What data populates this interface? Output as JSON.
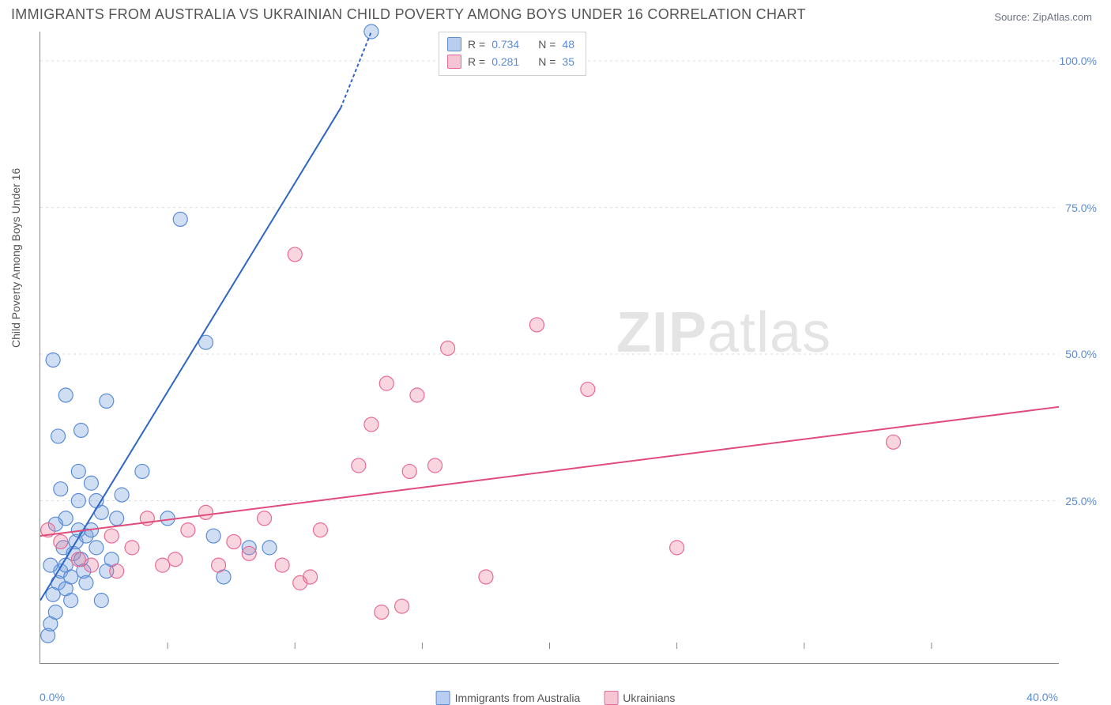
{
  "title": "IMMIGRANTS FROM AUSTRALIA VS UKRAINIAN CHILD POVERTY AMONG BOYS UNDER 16 CORRELATION CHART",
  "source_label": "Source: ",
  "source_link": "ZipAtlas.com",
  "watermark_bold": "ZIP",
  "watermark_rest": "atlas",
  "chart": {
    "type": "scatter",
    "background_color": "#ffffff",
    "grid_color": "#dddddd",
    "axis_color": "#888888",
    "label_color": "#555555",
    "tick_label_color": "#5b8cd6",
    "ylabel": "Child Poverty Among Boys Under 16",
    "xlim": [
      0,
      40
    ],
    "ylim": [
      0,
      105
    ],
    "xticks": [
      0,
      5,
      10,
      15,
      20,
      25,
      30,
      35,
      40
    ],
    "xtick_labels": {
      "0": "0.0%",
      "40": "40.0%"
    },
    "yticks": [
      25,
      50,
      75,
      100
    ],
    "ytick_labels": {
      "25": "25.0%",
      "50": "50.0%",
      "75": "75.0%",
      "100": "100.0%"
    },
    "marker_radius": 9,
    "marker_stroke_width": 1.2,
    "line_width": 2,
    "dash_pattern": "4 3"
  },
  "series": {
    "s1": {
      "label": "Immigrants from Australia",
      "fill": "rgba(120,160,220,0.35)",
      "stroke": "#5b8cd6",
      "line_color": "#2f66c4",
      "swatch_fill": "#b8cdef",
      "swatch_border": "#5b8cd6",
      "stats": {
        "R_label": "R =",
        "R": "0.734",
        "N_label": "N =",
        "N": "48"
      },
      "trend": {
        "x1": 0,
        "y1": 8,
        "x2": 13,
        "y2": 105,
        "solid_to_x": 11.8,
        "solid_to_y": 92
      },
      "points": [
        [
          0.3,
          2
        ],
        [
          0.4,
          4
        ],
        [
          0.6,
          6
        ],
        [
          0.5,
          9
        ],
        [
          0.7,
          11
        ],
        [
          0.8,
          13
        ],
        [
          1.0,
          10
        ],
        [
          1.0,
          14
        ],
        [
          1.2,
          12
        ],
        [
          1.3,
          16
        ],
        [
          1.4,
          18
        ],
        [
          1.5,
          20
        ],
        [
          1.0,
          22
        ],
        [
          0.6,
          21
        ],
        [
          1.6,
          15
        ],
        [
          1.7,
          13
        ],
        [
          1.8,
          19
        ],
        [
          2.0,
          20
        ],
        [
          2.2,
          17
        ],
        [
          2.4,
          23
        ],
        [
          2.6,
          13
        ],
        [
          2.8,
          15
        ],
        [
          3.0,
          22
        ],
        [
          0.8,
          27
        ],
        [
          1.5,
          30
        ],
        [
          0.7,
          36
        ],
        [
          1.6,
          37
        ],
        [
          2.6,
          42
        ],
        [
          1.0,
          43
        ],
        [
          0.5,
          49
        ],
        [
          6.5,
          52
        ],
        [
          4.0,
          30
        ],
        [
          5.5,
          73
        ],
        [
          5.0,
          22
        ],
        [
          6.8,
          19
        ],
        [
          7.2,
          12
        ],
        [
          8.2,
          17
        ],
        [
          9.0,
          17
        ],
        [
          13.0,
          105
        ],
        [
          1.5,
          25
        ],
        [
          2.2,
          25
        ],
        [
          2.0,
          28
        ],
        [
          1.2,
          8
        ],
        [
          0.9,
          17
        ],
        [
          0.4,
          14
        ],
        [
          3.2,
          26
        ],
        [
          1.8,
          11
        ],
        [
          2.4,
          8
        ]
      ]
    },
    "s2": {
      "label": "Ukrainians",
      "fill": "rgba(235,120,150,0.30)",
      "stroke": "#e76b95",
      "line_color": "#e14b7a",
      "swatch_fill": "#f6c5d3",
      "swatch_border": "#e76b95",
      "stats": {
        "R_label": "R =",
        "R": "0.281",
        "N_label": "N =",
        "N": "35"
      },
      "trend": {
        "x1": 0,
        "y1": 19,
        "x2": 40,
        "y2": 41
      },
      "points": [
        [
          0.3,
          20
        ],
        [
          0.8,
          18
        ],
        [
          1.5,
          15
        ],
        [
          2.0,
          14
        ],
        [
          2.8,
          19
        ],
        [
          3.0,
          13
        ],
        [
          3.6,
          17
        ],
        [
          4.2,
          22
        ],
        [
          4.8,
          14
        ],
        [
          5.3,
          15
        ],
        [
          5.8,
          20
        ],
        [
          6.5,
          23
        ],
        [
          7.0,
          14
        ],
        [
          7.6,
          18
        ],
        [
          8.2,
          16
        ],
        [
          8.8,
          22
        ],
        [
          9.5,
          14
        ],
        [
          10.2,
          11
        ],
        [
          10.6,
          12
        ],
        [
          11.0,
          20
        ],
        [
          13.4,
          6
        ],
        [
          14.2,
          7
        ],
        [
          12.5,
          31
        ],
        [
          13.0,
          38
        ],
        [
          14.5,
          30
        ],
        [
          15.5,
          31
        ],
        [
          14.8,
          43
        ],
        [
          13.6,
          45
        ],
        [
          17.5,
          12
        ],
        [
          19.5,
          55
        ],
        [
          16.0,
          51
        ],
        [
          21.5,
          44
        ],
        [
          25.0,
          17
        ],
        [
          33.5,
          35
        ],
        [
          10.0,
          67
        ]
      ]
    }
  },
  "legend_bottom": [
    "s1",
    "s2"
  ]
}
